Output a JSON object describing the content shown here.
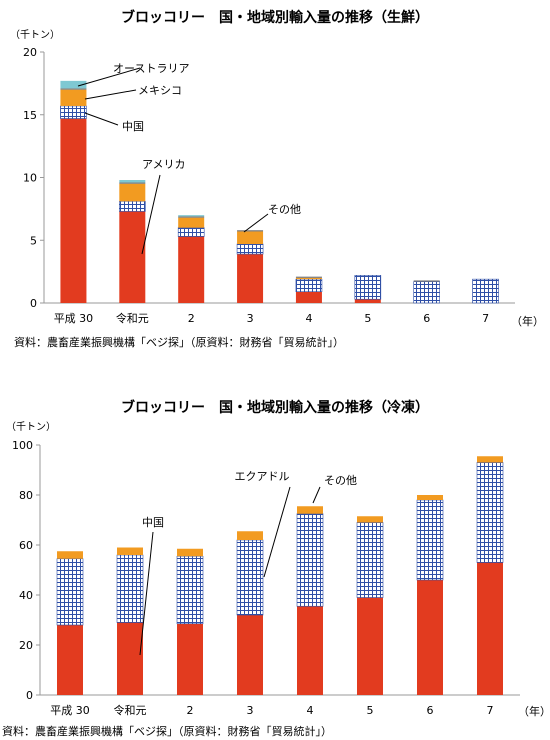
{
  "colors": {
    "us": "#e23b1f",
    "mainland": "#2f4fa6",
    "mexico": "#f29b21",
    "other": "#7a7a7a",
    "australia": "#7fc8d2",
    "ecuador": "#2f4fa6",
    "axis": "#999999",
    "grid": "#dcdcdc"
  },
  "chart_data": [
    {
      "type": "bar",
      "stacked": true,
      "title": "ブロッコリー　国・地域別輸入量の推移（生鮮）",
      "yunit": "（千トン）",
      "xunit": "（年）",
      "source": "資料：農畜産業振興機構「ベジ探」（原資料：財務省「貿易統計」）",
      "categories": [
        "平成 30",
        "令和元",
        "2",
        "3",
        "4",
        "5",
        "6",
        "7"
      ],
      "ylim": [
        0,
        20
      ],
      "yticks": [
        "0",
        "5",
        "10",
        "15",
        "20"
      ],
      "grid": false,
      "series": [
        {
          "name": "アメリカ",
          "pattern": "solid",
          "color_key": "us",
          "values": [
            14.7,
            7.3,
            5.3,
            3.9,
            0.9,
            0.3,
            0.0,
            0.0
          ]
        },
        {
          "name": "中国",
          "pattern": "grid",
          "color_key": "mainland",
          "values": [
            1.0,
            0.8,
            0.7,
            0.8,
            1.0,
            1.9,
            1.7,
            1.9
          ]
        },
        {
          "name": "メキシコ",
          "pattern": "solid",
          "color_key": "mexico",
          "values": [
            1.3,
            1.4,
            0.8,
            1.0,
            0.1,
            0.0,
            0.0,
            0.0
          ]
        },
        {
          "name": "その他",
          "pattern": "solid",
          "color_key": "other",
          "values": [
            0.1,
            0.1,
            0.1,
            0.1,
            0.1,
            0.0,
            0.1,
            0.0
          ]
        },
        {
          "name": "オーストラリア",
          "pattern": "solid",
          "color_key": "australia",
          "values": [
            0.6,
            0.2,
            0.1,
            0.0,
            0.0,
            0.0,
            0.0,
            0.0
          ]
        }
      ],
      "callouts": [
        {
          "text": "オーストラリア",
          "series": 4,
          "category": 0
        },
        {
          "text": "メキシコ",
          "series": 2,
          "category": 0
        },
        {
          "text": "中国",
          "series": 1,
          "category": 0
        },
        {
          "text": "アメリカ",
          "series": 0,
          "category": 1
        },
        {
          "text": "その他",
          "series": 3,
          "category": 3
        }
      ]
    },
    {
      "type": "bar",
      "stacked": true,
      "title": "ブロッコリー　国・地域別輸入量の推移（冷凍）",
      "yunit": "（千トン）",
      "xunit": "（年）",
      "source": "資料：農畜産業振興機構「ベジ探」（原資料：財務省「貿易統計」）",
      "categories": [
        "平成 30",
        "令和元",
        "2",
        "3",
        "4",
        "5",
        "6",
        "7"
      ],
      "ylim": [
        0,
        100
      ],
      "yticks": [
        "0",
        "20",
        "40",
        "60",
        "80",
        "100"
      ],
      "grid": false,
      "series": [
        {
          "name": "中国",
          "pattern": "solid",
          "color_key": "us",
          "values": [
            28,
            29,
            28.5,
            32,
            35.5,
            39,
            46,
            53
          ]
        },
        {
          "name": "エクアドル",
          "pattern": "grid",
          "color_key": "ecuador",
          "values": [
            26.5,
            27,
            27,
            30,
            37,
            30,
            32,
            40
          ]
        },
        {
          "name": "その他",
          "pattern": "solid",
          "color_key": "mexico",
          "values": [
            3,
            3,
            3,
            3.5,
            3,
            2.5,
            2,
            2.5
          ]
        }
      ],
      "callouts": [
        {
          "text": "中国",
          "series": 0,
          "category": 1
        },
        {
          "text": "エクアドル",
          "series": 1,
          "category": 3
        },
        {
          "text": "その他",
          "series": 2,
          "category": 4
        }
      ]
    }
  ]
}
